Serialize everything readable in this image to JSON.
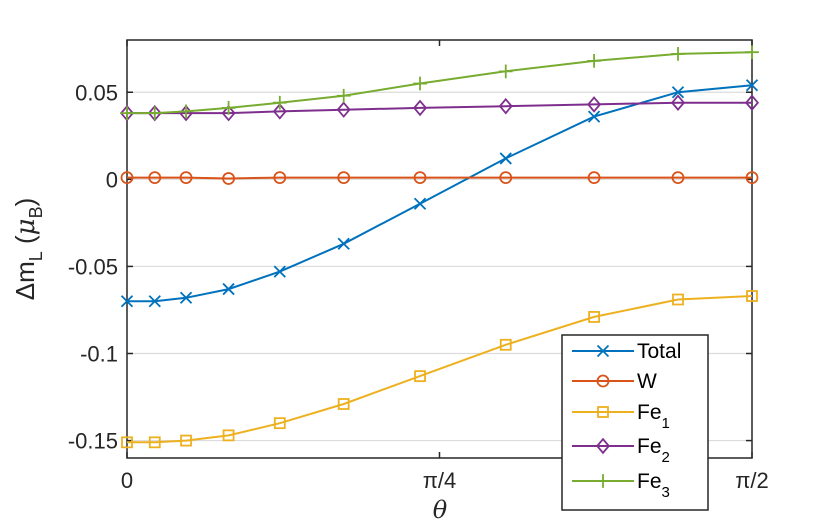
{
  "chart_data": {
    "type": "line",
    "title": "",
    "xlabel": "θ",
    "ylabel": {
      "prefix": "Δm",
      "prefix_sub": "L",
      "unit_open": " (",
      "unit_symbol": "μ",
      "unit_sub": "B",
      "unit_close": ")"
    },
    "xlim": [
      0,
      1.5707963
    ],
    "ylim": [
      -0.16,
      0.08
    ],
    "grid": "horizontal",
    "legend_position": "bottom-right",
    "xticks": [
      {
        "value": 0,
        "label": "0"
      },
      {
        "value": 0.7853982,
        "label": "π/4"
      },
      {
        "value": 1.5707963,
        "label": "π/2"
      }
    ],
    "yticks": [
      {
        "value": 0.05,
        "label": "0.05"
      },
      {
        "value": 0,
        "label": "0"
      },
      {
        "value": -0.05,
        "label": "-0.05"
      },
      {
        "value": -0.1,
        "label": "-0.1"
      },
      {
        "value": -0.15,
        "label": "-0.15"
      }
    ],
    "x": [
      0,
      0.0698,
      0.1484,
      0.2553,
      0.384,
      0.5446,
      0.7365,
      0.9519,
      1.1739,
      1.3848,
      1.5708
    ],
    "series": [
      {
        "name": "Total",
        "sub": "",
        "color": "#0072BD",
        "marker": "x",
        "values": [
          -0.07,
          -0.07,
          -0.068,
          -0.063,
          -0.053,
          -0.037,
          -0.014,
          0.012,
          0.036,
          0.05,
          0.054
        ]
      },
      {
        "name": "W",
        "sub": "",
        "color": "#D95319",
        "marker": "circle",
        "values": [
          0.001,
          0.001,
          0.001,
          0.0005,
          0.001,
          0.001,
          0.001,
          0.001,
          0.001,
          0.001,
          0.001
        ]
      },
      {
        "name": "Fe",
        "sub": "1",
        "color": "#EDB120",
        "marker": "square",
        "values": [
          -0.151,
          -0.151,
          -0.15,
          -0.147,
          -0.14,
          -0.129,
          -0.113,
          -0.095,
          -0.079,
          -0.069,
          -0.067
        ]
      },
      {
        "name": "Fe",
        "sub": "2",
        "color": "#7E2F8E",
        "marker": "diamond",
        "values": [
          0.038,
          0.038,
          0.038,
          0.038,
          0.039,
          0.04,
          0.041,
          0.042,
          0.043,
          0.044,
          0.044
        ]
      },
      {
        "name": "Fe",
        "sub": "3",
        "color": "#77AC30",
        "marker": "plus",
        "values": [
          0.038,
          0.038,
          0.039,
          0.041,
          0.044,
          0.048,
          0.055,
          0.062,
          0.068,
          0.072,
          0.073
        ]
      }
    ]
  }
}
